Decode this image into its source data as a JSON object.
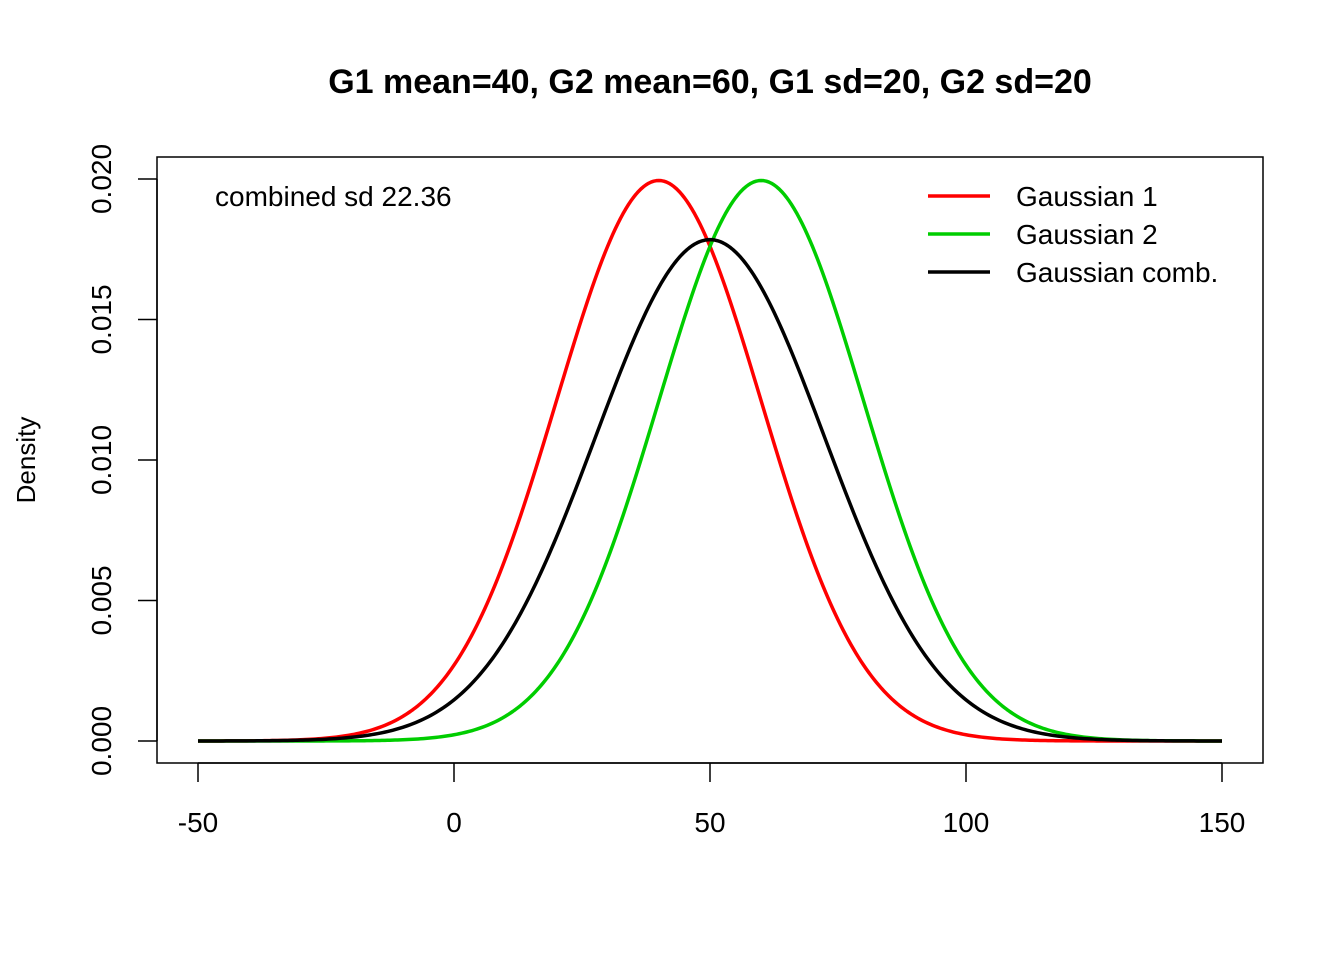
{
  "chart_data": {
    "type": "line",
    "title": "G1 mean=40, G2 mean=60, G1 sd=20, G2 sd=20",
    "xlabel": "",
    "ylabel": "Density",
    "xlim": [
      -50,
      150
    ],
    "ylim": [
      0,
      0.02
    ],
    "x_ticks": [
      -50,
      0,
      50,
      100,
      150
    ],
    "x_tick_labels": [
      "-50",
      "0",
      "50",
      "100",
      "150"
    ],
    "y_ticks": [
      0,
      0.005,
      0.01,
      0.015,
      0.02
    ],
    "y_tick_labels": [
      "0.000",
      "0.005",
      "0.010",
      "0.015",
      "0.020"
    ],
    "grid": false,
    "legend_position": "top-right",
    "annotation": "combined sd 22.36",
    "series": [
      {
        "name": "Gaussian 1",
        "color": "#ff0000",
        "mean": 40,
        "sd": 20
      },
      {
        "name": "Gaussian 2",
        "color": "#00cd00",
        "mean": 60,
        "sd": 20
      },
      {
        "name": "Gaussian comb.",
        "color": "#000000",
        "mean": 50,
        "sd": 22.36
      }
    ]
  }
}
